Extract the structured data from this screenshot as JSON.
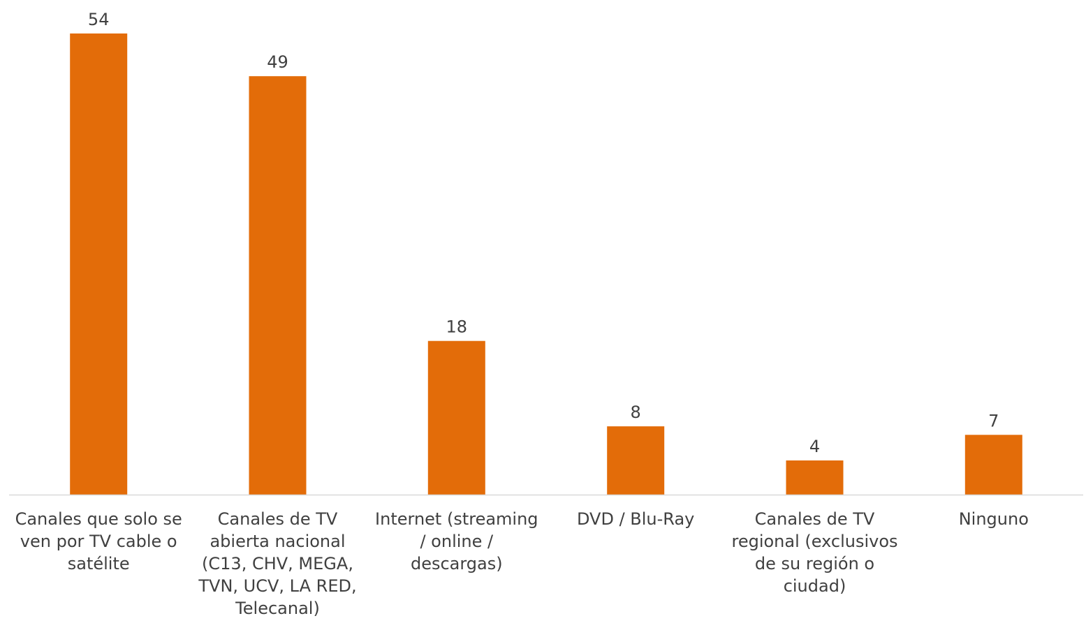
{
  "chart_data": {
    "type": "bar",
    "categories": [
      "Canales que solo se ven por TV cable o satélite",
      "Canales de TV abierta nacional (C13, CHV, MEGA, TVN, UCV, LA RED, Telecanal)",
      "Internet (streaming / online / descargas)",
      "DVD / Blu-Ray",
      "Canales de TV regional (exclusivos de su región o ciudad)",
      "Ninguno"
    ],
    "category_lines": [
      [
        "Canales que solo se",
        "ven por TV cable o",
        "satélite"
      ],
      [
        "Canales de TV",
        "abierta nacional",
        "(C13, CHV, MEGA,",
        "TVN, UCV, LA RED,",
        "Telecanal)"
      ],
      [
        "Internet (streaming",
        "/  online /",
        "descargas)"
      ],
      [
        "DVD / Blu-Ray"
      ],
      [
        "Canales de TV",
        "regional (exclusivos",
        "de su región o",
        "ciudad)"
      ],
      [
        "Ninguno"
      ]
    ],
    "values": [
      54,
      49,
      18,
      8,
      4,
      7
    ],
    "data_labels": [
      "54",
      "49",
      "18",
      "8",
      "4",
      "7"
    ],
    "title": "",
    "xlabel": "",
    "ylabel": "",
    "ylim": [
      0,
      54
    ],
    "grid": false,
    "legend": "none",
    "colors": {
      "bar": "#E36C09",
      "axis": "#D9D9D9",
      "text": "#404040"
    }
  }
}
